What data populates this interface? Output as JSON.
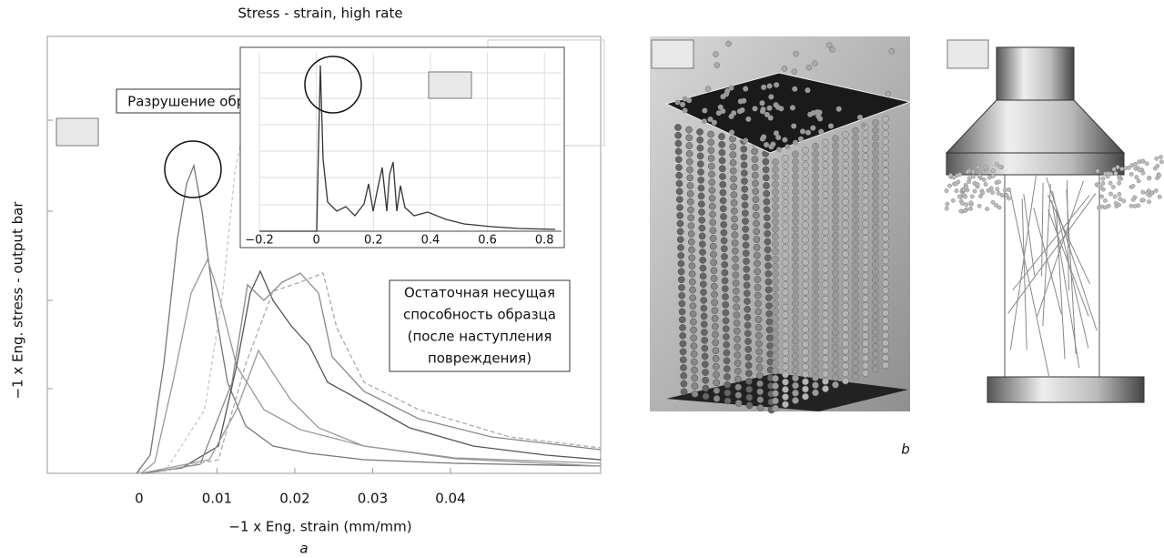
{
  "figure": {
    "panel_a": {
      "label": "a",
      "chart": {
        "type": "line",
        "title": "Stress - strain, high rate",
        "x_label": "−1 x Eng. strain (mm/mm)",
        "y_label": "−1 x Eng. stress - output bar",
        "xlim": [
          -0.0118,
          0.0593
        ],
        "xticks": [
          0,
          0.01,
          0.02,
          0.03,
          0.04
        ]
      },
      "inset": {
        "type": "line",
        "xlim": [
          -0.2,
          0.86
        ],
        "xticks": [
          {
            "value": -0.2,
            "label": "−0.2"
          },
          0,
          0.2,
          0.4,
          0.6,
          0.8
        ]
      },
      "annotations": {
        "failure": "Разрушение образца",
        "residual": [
          "Остаточная несущая",
          "способность образца",
          "(после наступления",
          "повреждения)"
        ]
      }
    },
    "panel_b": {
      "label": "b"
    }
  }
}
